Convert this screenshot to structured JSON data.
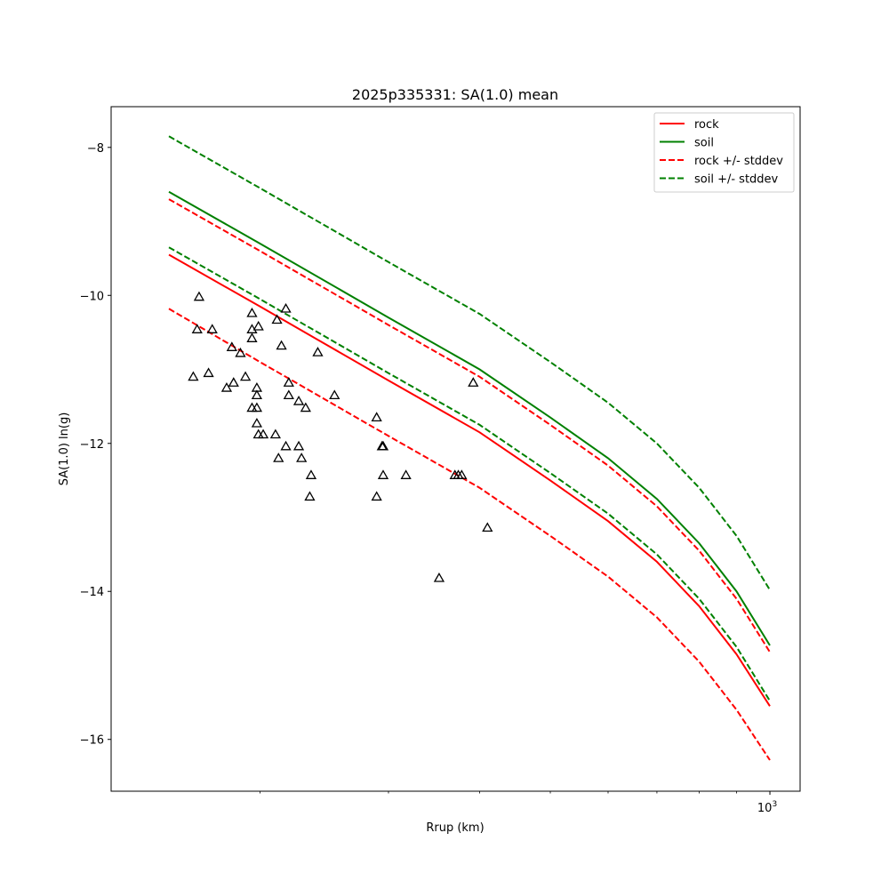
{
  "chart_data": {
    "type": "line",
    "title": "2025p335331: SA(1.0) mean",
    "xlabel": "Rrup (km)",
    "ylabel": "SA(1.0) ln(g)",
    "xscale": "log",
    "xlim": [
      125,
      1100
    ],
    "ylim": [
      -16.7,
      -7.45
    ],
    "yticks": [
      -16,
      -14,
      -12,
      -10,
      -8
    ],
    "xtick_major": [
      {
        "value": 1000,
        "label": "10",
        "exp": "3"
      }
    ],
    "xtick_minor": [
      200,
      300,
      400,
      500,
      600,
      700,
      800,
      900
    ],
    "grid": false,
    "legend_position": "top-right",
    "series": [
      {
        "name": "rock",
        "color": "#ff0000",
        "dash": "solid",
        "x": [
          150,
          200,
          300,
          400,
          500,
          600,
          700,
          800,
          900,
          1000
        ],
        "y": [
          -9.45,
          -10.15,
          -11.15,
          -11.85,
          -12.5,
          -13.05,
          -13.6,
          -14.2,
          -14.85,
          -15.55
        ]
      },
      {
        "name": "soil",
        "color": "#008000",
        "dash": "solid",
        "x": [
          150,
          200,
          300,
          400,
          500,
          600,
          700,
          800,
          900,
          1000
        ],
        "y": [
          -8.6,
          -9.3,
          -10.3,
          -11.0,
          -11.65,
          -12.2,
          -12.75,
          -13.35,
          -14.0,
          -14.73
        ]
      },
      {
        "name": "rock +/- stddev",
        "color": "#ff0000",
        "dash": "dashed",
        "x": [
          150,
          200,
          300,
          400,
          500,
          600,
          700,
          800,
          900,
          1000
        ],
        "y": [
          -8.7,
          -9.4,
          -10.4,
          -11.1,
          -11.75,
          -12.3,
          -12.85,
          -13.45,
          -14.1,
          -14.82
        ]
      },
      {
        "name": "",
        "color": "#ff0000",
        "dash": "dashed",
        "x": [
          150,
          200,
          300,
          400,
          500,
          600,
          700,
          800,
          900,
          1000
        ],
        "y": [
          -10.18,
          -10.9,
          -11.9,
          -12.6,
          -13.25,
          -13.8,
          -14.35,
          -14.95,
          -15.6,
          -16.28
        ]
      },
      {
        "name": "soil +/- stddev",
        "color": "#008000",
        "dash": "dashed",
        "x": [
          150,
          200,
          300,
          400,
          500,
          600,
          700,
          800,
          900,
          1000
        ],
        "y": [
          -7.85,
          -8.55,
          -9.55,
          -10.25,
          -10.9,
          -11.45,
          -12.0,
          -12.6,
          -13.25,
          -13.98
        ]
      },
      {
        "name": "",
        "color": "#008000",
        "dash": "dashed",
        "x": [
          150,
          200,
          300,
          400,
          500,
          600,
          700,
          800,
          900,
          1000
        ],
        "y": [
          -9.35,
          -10.05,
          -11.05,
          -11.75,
          -12.4,
          -12.95,
          -13.5,
          -14.1,
          -14.75,
          -15.48
        ]
      }
    ],
    "observations": {
      "marker": "triangle",
      "color": "#000000",
      "points": [
        [
          165,
          -10.02
        ],
        [
          164,
          -10.46
        ],
        [
          162,
          -11.1
        ],
        [
          172,
          -10.46
        ],
        [
          170,
          -11.05
        ],
        [
          183,
          -10.7
        ],
        [
          184,
          -11.18
        ],
        [
          180,
          -11.25
        ],
        [
          188,
          -10.78
        ],
        [
          191,
          -11.1
        ],
        [
          195,
          -10.24
        ],
        [
          195,
          -10.46
        ],
        [
          195,
          -10.58
        ],
        [
          199,
          -10.42
        ],
        [
          198,
          -11.25
        ],
        [
          198,
          -11.35
        ],
        [
          195,
          -11.52
        ],
        [
          198,
          -11.52
        ],
        [
          198,
          -11.73
        ],
        [
          199,
          -11.88
        ],
        [
          202,
          -11.88
        ],
        [
          211,
          -10.33
        ],
        [
          217,
          -10.18
        ],
        [
          214,
          -10.68
        ],
        [
          219,
          -11.18
        ],
        [
          219,
          -11.35
        ],
        [
          210,
          -11.88
        ],
        [
          212,
          -12.2
        ],
        [
          217,
          -12.04
        ],
        [
          226,
          -11.43
        ],
        [
          231,
          -11.52
        ],
        [
          226,
          -12.04
        ],
        [
          228,
          -12.2
        ],
        [
          235,
          -12.43
        ],
        [
          234,
          -12.72
        ],
        [
          240,
          -10.77
        ],
        [
          253,
          -11.35
        ],
        [
          289,
          -11.65
        ],
        [
          294,
          -12.04
        ],
        [
          295,
          -12.04
        ],
        [
          295,
          -12.43
        ],
        [
          289,
          -12.72
        ],
        [
          317,
          -12.43
        ],
        [
          352,
          -13.82
        ],
        [
          370,
          -12.43
        ],
        [
          374,
          -12.43
        ],
        [
          378,
          -12.43
        ],
        [
          392,
          -11.18
        ],
        [
          410,
          -13.14
        ]
      ]
    }
  }
}
